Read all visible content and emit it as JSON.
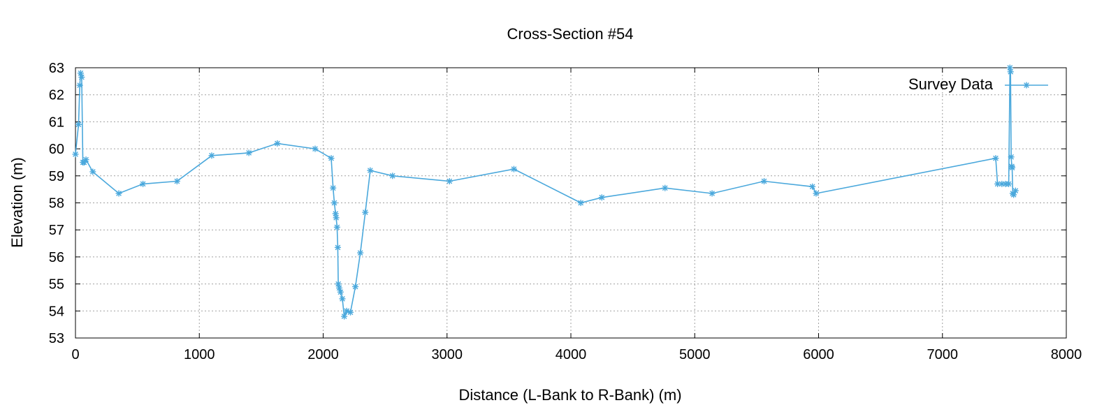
{
  "chart_data": {
    "type": "line",
    "title": "Cross-Section #54",
    "xlabel": "Distance (L-Bank to R-Bank) (m)",
    "ylabel": "Elevation (m)",
    "xlim": [
      0,
      8000
    ],
    "ylim": [
      53,
      63
    ],
    "xticks": [
      0,
      1000,
      2000,
      3000,
      4000,
      5000,
      6000,
      7000,
      8000
    ],
    "yticks": [
      53,
      54,
      55,
      56,
      57,
      58,
      59,
      60,
      61,
      62,
      63
    ],
    "grid": true,
    "legend_position": "top-right",
    "marker": "asterisk",
    "series": [
      {
        "name": "Survey Data",
        "color": "#4aa8dc",
        "x": [
          0,
          25,
          35,
          42,
          50,
          60,
          70,
          85,
          140,
          350,
          545,
          820,
          1100,
          1400,
          1630,
          1935,
          2065,
          2080,
          2090,
          2100,
          2105,
          2112,
          2118,
          2122,
          2130,
          2140,
          2155,
          2170,
          2190,
          2220,
          2260,
          2300,
          2340,
          2380,
          2560,
          3020,
          3540,
          4080,
          4250,
          4760,
          5140,
          5560,
          5950,
          5980,
          7430,
          7445,
          7480,
          7510,
          7535,
          7545,
          7550,
          7555,
          7560,
          7563,
          7568,
          7575,
          7590
        ],
        "y": [
          59.8,
          60.9,
          62.35,
          62.8,
          62.65,
          59.5,
          59.5,
          59.6,
          59.15,
          58.35,
          58.7,
          58.8,
          59.75,
          59.85,
          60.2,
          60.0,
          59.65,
          58.55,
          58.0,
          57.6,
          57.45,
          57.1,
          56.35,
          55.0,
          54.85,
          54.7,
          54.45,
          53.8,
          54.0,
          53.95,
          54.9,
          56.15,
          57.65,
          59.2,
          59.0,
          58.8,
          59.25,
          58.0,
          58.2,
          58.55,
          58.35,
          58.8,
          58.6,
          58.35,
          59.65,
          58.7,
          58.7,
          58.7,
          58.7,
          63.0,
          62.85,
          59.7,
          59.35,
          59.3,
          58.35,
          58.3,
          58.45
        ]
      }
    ]
  }
}
